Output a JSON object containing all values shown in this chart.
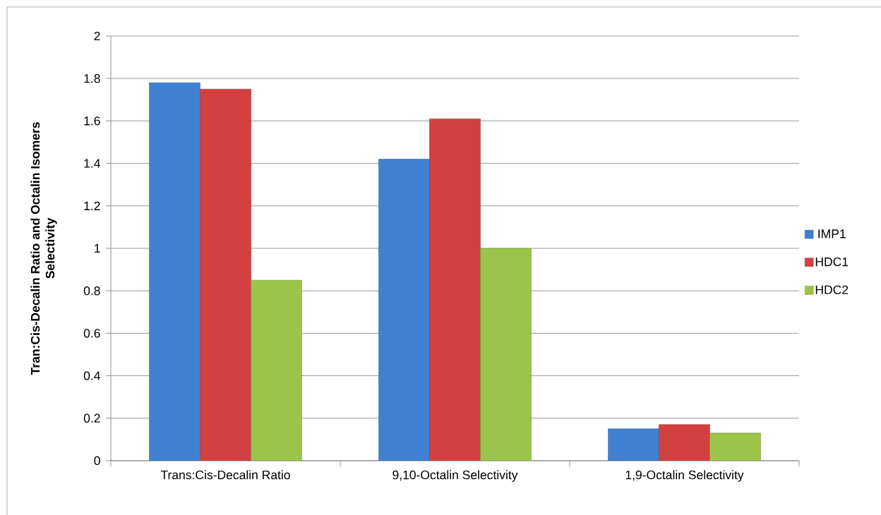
{
  "chart_data": {
    "type": "bar",
    "ylabel": "Tran:Cis-Decalin Ratio and Octalin Isomers Selectivity",
    "categories": [
      "Trans:Cis-Decalin Ratio",
      "9,10-Octalin Selectivity",
      "1,9-Octalin Selectivity"
    ],
    "series": [
      {
        "name": "IMP1",
        "color": "#4080d0",
        "values": [
          1.78,
          1.42,
          0.15
        ]
      },
      {
        "name": "HDC1",
        "color": "#d44040",
        "values": [
          1.75,
          1.61,
          0.17
        ]
      },
      {
        "name": "HDC2",
        "color": "#9bc44a",
        "values": [
          0.85,
          1.0,
          0.13
        ]
      }
    ],
    "ylim": [
      0,
      2
    ],
    "yticks": [
      0,
      0.2,
      0.4,
      0.6,
      0.8,
      1,
      1.2,
      1.4,
      1.6,
      1.8,
      2
    ],
    "grid": "y",
    "legend": "right"
  }
}
